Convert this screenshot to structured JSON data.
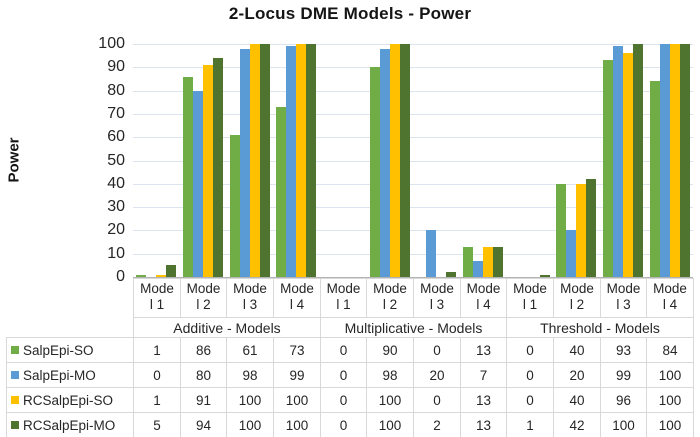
{
  "chart_data": {
    "type": "bar",
    "title": "2-Locus DME Models - Power",
    "ylabel": "Power",
    "ylim": [
      0,
      100
    ],
    "ytick_step": 10,
    "ytick_labels": [
      "0",
      "10",
      "20",
      "30",
      "40",
      "50",
      "60",
      "70",
      "80",
      "90",
      "100"
    ],
    "grid": true,
    "legend_position": "data-table-left",
    "data_table_shown": true,
    "groups": [
      "Additive - Models",
      "Multiplicative - Models",
      "Threshold - Models"
    ],
    "categories_per_group": 4,
    "xtick_labels": [
      "Mode\nl 1",
      "Mode\nl 2",
      "Mode\nl 3",
      "Mode\nl 4",
      "Mode\nl 1",
      "Mode\nl 2",
      "Mode\nl 3",
      "Mode\nl 4",
      "Mode\nl 1",
      "Mode\nl 2",
      "Mode\nl 3",
      "Mode\nl 4"
    ],
    "series": [
      {
        "name": "SalpEpi-SO",
        "color": "#70AD47",
        "values": [
          1,
          86,
          61,
          73,
          0,
          90,
          0,
          13,
          0,
          40,
          93,
          84
        ]
      },
      {
        "name": "SalpEpi-MO",
        "color": "#5B9BD5",
        "values": [
          0,
          80,
          98,
          99,
          0,
          98,
          20,
          7,
          0,
          20,
          99,
          100
        ]
      },
      {
        "name": "RCSalpEpi-SO",
        "color": "#FFC000",
        "values": [
          1,
          91,
          100,
          100,
          0,
          100,
          0,
          13,
          0,
          40,
          96,
          100
        ]
      },
      {
        "name": "RCSalpEpi-MO",
        "color": "#4E7430",
        "values": [
          5,
          94,
          100,
          100,
          0,
          100,
          2,
          13,
          1,
          42,
          100,
          100
        ]
      }
    ],
    "style_colors": {
      "gridline": "#dce4ef",
      "axis_line": "#b3b3b3",
      "table_border": "#d9d9d9",
      "text": "#262626"
    }
  }
}
